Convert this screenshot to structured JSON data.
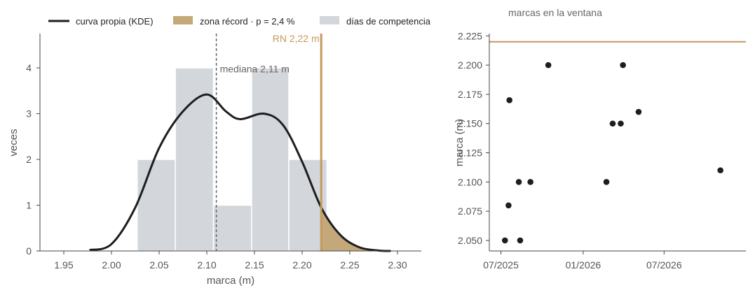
{
  "chart_data": [
    {
      "type": "histogram",
      "xlabel": "marca (m)",
      "ylabel": "veces",
      "xlim": [
        1.925,
        2.325
      ],
      "ylim": [
        0,
        4.75
      ],
      "xticks": [
        "1.95",
        "2.00",
        "2.05",
        "2.10",
        "2.15",
        "2.20",
        "2.25",
        "2.30"
      ],
      "yticks": [
        "0",
        "1",
        "2",
        "3",
        "4"
      ],
      "grid": false,
      "legend_position": "top",
      "legend": {
        "kde": "curva propia (KDE)",
        "record_zone": "zona récord · p = 2,4 %",
        "bins": "días de competencia"
      },
      "bins": [
        {
          "from": 2.027,
          "to": 2.067,
          "count": 2
        },
        {
          "from": 2.067,
          "to": 2.107,
          "count": 4
        },
        {
          "from": 2.107,
          "to": 2.147,
          "count": 1
        },
        {
          "from": 2.147,
          "to": 2.186,
          "count": 4
        },
        {
          "from": 2.186,
          "to": 2.226,
          "count": 2
        }
      ],
      "kde": {
        "x": [
          1.977,
          2.0,
          2.025,
          2.05,
          2.075,
          2.1,
          2.12,
          2.135,
          2.16,
          2.18,
          2.2,
          2.22,
          2.24,
          2.26,
          2.28,
          2.293
        ],
        "y": [
          0.02,
          0.15,
          0.95,
          2.25,
          3.05,
          3.42,
          3.05,
          2.88,
          3.0,
          2.75,
          1.95,
          0.95,
          0.35,
          0.08,
          0.01,
          0.0
        ]
      },
      "median": {
        "value": 2.11,
        "label": "mediana 2,11 m"
      },
      "record": {
        "value": 2.22,
        "label": "RN 2,22 m"
      },
      "colors": {
        "bins": "#d3d6da",
        "kde": "#1e1e20",
        "record": "#c49a5a",
        "shade": "#c4a87a",
        "median": "#666666"
      }
    },
    {
      "type": "scatter",
      "title": "marcas en la ventana",
      "xlabel": "",
      "ylabel": "marca (m)",
      "xlim": [
        "2025-06-05",
        "2026-12-31"
      ],
      "ylim": [
        2.041,
        2.227
      ],
      "xticks": [
        {
          "value": "2025-07-01",
          "label": "07/2025"
        },
        {
          "value": "2026-01-01",
          "label": "01/2026"
        },
        {
          "value": "2026-07-01",
          "label": "07/2026"
        }
      ],
      "yticks": [
        "2.050",
        "2.075",
        "2.100",
        "2.125",
        "2.150",
        "2.175",
        "2.200",
        "2.225"
      ],
      "grid": false,
      "points": [
        {
          "date": "2025-07-10",
          "value": 2.05
        },
        {
          "date": "2025-07-18",
          "value": 2.08
        },
        {
          "date": "2025-07-20",
          "value": 2.17
        },
        {
          "date": "2025-08-10",
          "value": 2.1
        },
        {
          "date": "2025-08-13",
          "value": 2.05
        },
        {
          "date": "2025-09-05",
          "value": 2.1
        },
        {
          "date": "2025-10-15",
          "value": 2.2
        },
        {
          "date": "2026-02-22",
          "value": 2.1
        },
        {
          "date": "2026-03-08",
          "value": 2.15
        },
        {
          "date": "2026-03-26",
          "value": 2.15
        },
        {
          "date": "2026-03-31",
          "value": 2.2
        },
        {
          "date": "2026-05-05",
          "value": 2.16
        },
        {
          "date": "2026-11-04",
          "value": 2.11
        }
      ],
      "record_line": 2.22,
      "colors": {
        "points": "#1e1e20",
        "record": "#c49a5a"
      }
    }
  ]
}
